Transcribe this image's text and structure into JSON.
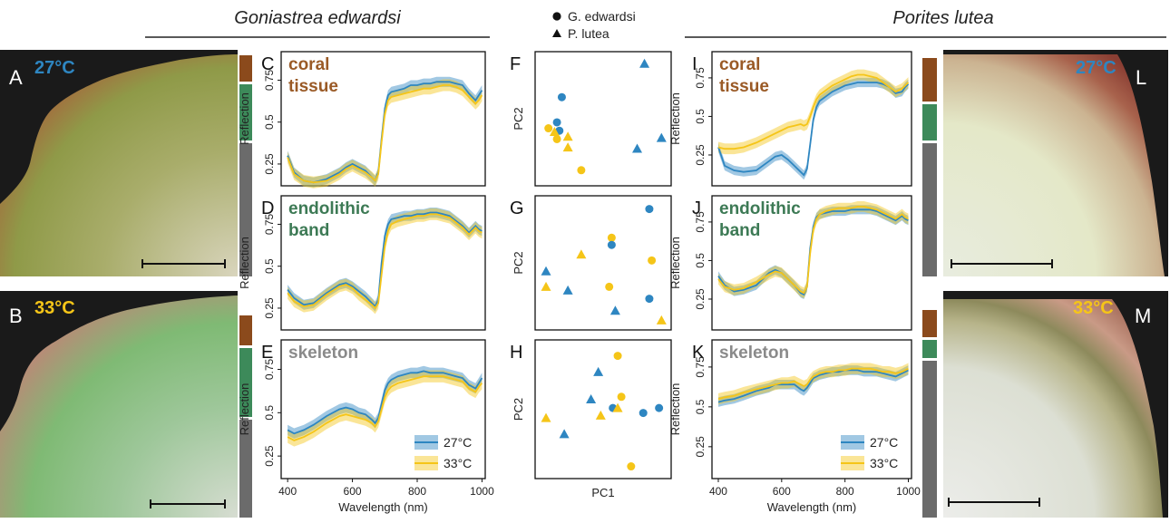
{
  "species": {
    "left": "Goniastrea edwardsi",
    "right": "Porites lutea"
  },
  "colors": {
    "c27": "#2e86c1",
    "c33": "#f5c518",
    "tissue": "#8b4a1c",
    "band": "#3d8a5a",
    "skeleton": "#6b6b6b",
    "lbl_tissue": "#9a5a26",
    "lbl_band": "#3d7a55",
    "lbl_skel": "#8a8a8a"
  },
  "photos": [
    {
      "letter": "A",
      "temp": "27°C",
      "temp_color": "#2e86c1"
    },
    {
      "letter": "B",
      "temp": "33°C",
      "temp_color": "#f5c518"
    },
    {
      "letter": "L",
      "temp": "27°C",
      "temp_color": "#2e86c1"
    },
    {
      "letter": "M",
      "temp": "33°C",
      "temp_color": "#f5c518"
    }
  ],
  "pca_legend": [
    {
      "label": "G. edwardsi",
      "shape": "circle"
    },
    {
      "label": "P. lutea",
      "shape": "triangle"
    }
  ],
  "spectra_legend": [
    {
      "label": "27°C",
      "color": "#2e86c1"
    },
    {
      "label": "33°C",
      "color": "#f5c518"
    }
  ],
  "chart_data": [
    {
      "type": "line",
      "panel": "C",
      "title": "coral\ntissue",
      "xlabel": "",
      "ylabel": "Reflection",
      "xlim": [
        380,
        1010
      ],
      "ylim": [
        0.12,
        0.92
      ],
      "x_ticks": [
        400,
        600,
        800,
        1000
      ],
      "y_ticks": [
        0.25,
        0.5,
        0.75
      ],
      "x": [
        400,
        420,
        450,
        480,
        520,
        560,
        580,
        600,
        620,
        640,
        660,
        670,
        680,
        690,
        700,
        710,
        720,
        740,
        760,
        780,
        800,
        820,
        840,
        860,
        880,
        900,
        920,
        940,
        960,
        980,
        990,
        1000
      ],
      "series": [
        {
          "name": "27°C",
          "values": [
            0.3,
            0.2,
            0.15,
            0.14,
            0.16,
            0.2,
            0.23,
            0.25,
            0.23,
            0.21,
            0.17,
            0.15,
            0.2,
            0.4,
            0.58,
            0.66,
            0.68,
            0.69,
            0.7,
            0.72,
            0.72,
            0.73,
            0.73,
            0.74,
            0.74,
            0.74,
            0.73,
            0.72,
            0.67,
            0.63,
            0.66,
            0.69
          ]
        },
        {
          "name": "33°C",
          "values": [
            0.29,
            0.19,
            0.15,
            0.14,
            0.15,
            0.19,
            0.22,
            0.24,
            0.22,
            0.2,
            0.17,
            0.15,
            0.19,
            0.38,
            0.55,
            0.63,
            0.65,
            0.66,
            0.67,
            0.68,
            0.69,
            0.7,
            0.7,
            0.71,
            0.72,
            0.72,
            0.71,
            0.69,
            0.65,
            0.61,
            0.63,
            0.66
          ]
        }
      ]
    },
    {
      "type": "line",
      "panel": "D",
      "title": "endolithic\nband",
      "xlabel": "",
      "ylabel": "Reflection",
      "xlim": [
        380,
        1010
      ],
      "ylim": [
        0.12,
        0.92
      ],
      "x_ticks": [
        400,
        600,
        800,
        1000
      ],
      "y_ticks": [
        0.25,
        0.5,
        0.75
      ],
      "x": [
        400,
        420,
        450,
        480,
        520,
        560,
        580,
        600,
        620,
        640,
        660,
        670,
        680,
        690,
        700,
        710,
        720,
        740,
        760,
        780,
        800,
        820,
        840,
        860,
        880,
        900,
        920,
        940,
        960,
        980,
        990,
        1000
      ],
      "series": [
        {
          "name": "27°C",
          "values": [
            0.36,
            0.31,
            0.27,
            0.28,
            0.34,
            0.39,
            0.4,
            0.38,
            0.35,
            0.32,
            0.28,
            0.26,
            0.3,
            0.52,
            0.68,
            0.75,
            0.78,
            0.79,
            0.8,
            0.8,
            0.81,
            0.81,
            0.82,
            0.82,
            0.81,
            0.8,
            0.77,
            0.74,
            0.7,
            0.74,
            0.72,
            0.71
          ]
        },
        {
          "name": "33°C",
          "values": [
            0.34,
            0.29,
            0.26,
            0.27,
            0.33,
            0.38,
            0.39,
            0.37,
            0.33,
            0.3,
            0.27,
            0.25,
            0.28,
            0.45,
            0.62,
            0.71,
            0.75,
            0.77,
            0.78,
            0.79,
            0.8,
            0.8,
            0.81,
            0.81,
            0.8,
            0.79,
            0.76,
            0.73,
            0.69,
            0.73,
            0.71,
            0.7
          ]
        }
      ]
    },
    {
      "type": "line",
      "panel": "E",
      "title": "skeleton",
      "xlabel": "Wavelength (nm)",
      "ylabel": "Reflection",
      "xlim": [
        380,
        1010
      ],
      "ylim": [
        0.12,
        0.92
      ],
      "x_ticks": [
        400,
        600,
        800,
        1000
      ],
      "y_ticks": [
        0.25,
        0.5,
        0.75
      ],
      "x": [
        400,
        420,
        450,
        480,
        520,
        560,
        580,
        600,
        620,
        640,
        660,
        670,
        680,
        690,
        700,
        710,
        720,
        740,
        760,
        780,
        800,
        820,
        840,
        860,
        880,
        900,
        920,
        940,
        960,
        980,
        990,
        1000
      ],
      "series": [
        {
          "name": "27°C",
          "values": [
            0.4,
            0.38,
            0.4,
            0.43,
            0.48,
            0.52,
            0.53,
            0.52,
            0.5,
            0.49,
            0.46,
            0.44,
            0.47,
            0.55,
            0.63,
            0.67,
            0.69,
            0.71,
            0.72,
            0.73,
            0.73,
            0.74,
            0.73,
            0.73,
            0.73,
            0.72,
            0.71,
            0.7,
            0.66,
            0.64,
            0.67,
            0.7
          ]
        },
        {
          "name": "33°C",
          "values": [
            0.36,
            0.34,
            0.36,
            0.39,
            0.44,
            0.48,
            0.49,
            0.48,
            0.47,
            0.46,
            0.44,
            0.42,
            0.45,
            0.52,
            0.59,
            0.63,
            0.65,
            0.67,
            0.68,
            0.69,
            0.7,
            0.71,
            0.71,
            0.71,
            0.71,
            0.7,
            0.69,
            0.68,
            0.64,
            0.62,
            0.65,
            0.67
          ]
        }
      ]
    },
    {
      "type": "scatter",
      "panel": "F",
      "title": "",
      "xlabel": "",
      "ylabel": "PC2",
      "xlim": [
        0,
        1
      ],
      "ylim": [
        0,
        1
      ],
      "points": [
        {
          "x": 0.84,
          "y": 0.96,
          "temp": "27°C",
          "species": "P. lutea"
        },
        {
          "x": 0.16,
          "y": 0.68,
          "temp": "27°C",
          "species": "G. edwardsi"
        },
        {
          "x": 0.12,
          "y": 0.47,
          "temp": "27°C",
          "species": "G. edwardsi"
        },
        {
          "x": 0.14,
          "y": 0.4,
          "temp": "27°C",
          "species": "G. edwardsi"
        },
        {
          "x": 0.05,
          "y": 0.42,
          "temp": "33°C",
          "species": "G. edwardsi"
        },
        {
          "x": 0.1,
          "y": 0.39,
          "temp": "33°C",
          "species": "P. lutea"
        },
        {
          "x": 0.12,
          "y": 0.33,
          "temp": "33°C",
          "species": "G. edwardsi"
        },
        {
          "x": 0.21,
          "y": 0.35,
          "temp": "33°C",
          "species": "P. lutea"
        },
        {
          "x": 0.21,
          "y": 0.26,
          "temp": "33°C",
          "species": "P. lutea"
        },
        {
          "x": 0.32,
          "y": 0.07,
          "temp": "33°C",
          "species": "G. edwardsi"
        },
        {
          "x": 0.78,
          "y": 0.25,
          "temp": "27°C",
          "species": "P. lutea"
        },
        {
          "x": 0.98,
          "y": 0.34,
          "temp": "27°C",
          "species": "P. lutea"
        }
      ]
    },
    {
      "type": "scatter",
      "panel": "G",
      "title": "",
      "xlabel": "",
      "ylabel": "PC2",
      "xlim": [
        0,
        1
      ],
      "ylim": [
        0,
        1
      ],
      "points": [
        {
          "x": 0.88,
          "y": 0.95,
          "temp": "27°C",
          "species": "G. edwardsi"
        },
        {
          "x": 0.57,
          "y": 0.71,
          "temp": "33°C",
          "species": "G. edwardsi"
        },
        {
          "x": 0.57,
          "y": 0.65,
          "temp": "27°C",
          "species": "G. edwardsi"
        },
        {
          "x": 0.32,
          "y": 0.57,
          "temp": "33°C",
          "species": "P. lutea"
        },
        {
          "x": 0.9,
          "y": 0.52,
          "temp": "33°C",
          "species": "G. edwardsi"
        },
        {
          "x": 0.03,
          "y": 0.43,
          "temp": "27°C",
          "species": "P. lutea"
        },
        {
          "x": 0.03,
          "y": 0.3,
          "temp": "33°C",
          "species": "P. lutea"
        },
        {
          "x": 0.21,
          "y": 0.27,
          "temp": "27°C",
          "species": "P. lutea"
        },
        {
          "x": 0.55,
          "y": 0.3,
          "temp": "33°C",
          "species": "G. edwardsi"
        },
        {
          "x": 0.88,
          "y": 0.2,
          "temp": "27°C",
          "species": "G. edwardsi"
        },
        {
          "x": 0.6,
          "y": 0.1,
          "temp": "27°C",
          "species": "P. lutea"
        },
        {
          "x": 0.98,
          "y": 0.02,
          "temp": "33°C",
          "species": "P. lutea"
        }
      ]
    },
    {
      "type": "scatter",
      "panel": "H",
      "title": "",
      "xlabel": "PC1",
      "ylabel": "PC2",
      "xlim": [
        0,
        1
      ],
      "ylim": [
        0,
        1
      ],
      "points": [
        {
          "x": 0.62,
          "y": 0.93,
          "temp": "33°C",
          "species": "G. edwardsi"
        },
        {
          "x": 0.46,
          "y": 0.8,
          "temp": "27°C",
          "species": "P. lutea"
        },
        {
          "x": 0.65,
          "y": 0.6,
          "temp": "33°C",
          "species": "G. edwardsi"
        },
        {
          "x": 0.4,
          "y": 0.58,
          "temp": "27°C",
          "species": "P. lutea"
        },
        {
          "x": 0.58,
          "y": 0.51,
          "temp": "27°C",
          "species": "G. edwardsi"
        },
        {
          "x": 0.62,
          "y": 0.51,
          "temp": "33°C",
          "species": "P. lutea"
        },
        {
          "x": 0.83,
          "y": 0.47,
          "temp": "27°C",
          "species": "G. edwardsi"
        },
        {
          "x": 0.96,
          "y": 0.51,
          "temp": "27°C",
          "species": "G. edwardsi"
        },
        {
          "x": 0.03,
          "y": 0.43,
          "temp": "33°C",
          "species": "P. lutea"
        },
        {
          "x": 0.48,
          "y": 0.45,
          "temp": "33°C",
          "species": "P. lutea"
        },
        {
          "x": 0.18,
          "y": 0.3,
          "temp": "27°C",
          "species": "P. lutea"
        },
        {
          "x": 0.73,
          "y": 0.04,
          "temp": "33°C",
          "species": "G. edwardsi"
        }
      ]
    },
    {
      "type": "line",
      "panel": "I",
      "title": "coral\ntissue",
      "xlabel": "",
      "ylabel": "Reflection",
      "xlim": [
        380,
        1010
      ],
      "ylim": [
        0.05,
        0.92
      ],
      "x_ticks": [
        400,
        600,
        800,
        1000
      ],
      "y_ticks": [
        0.25,
        0.5,
        0.75
      ],
      "x": [
        400,
        420,
        450,
        480,
        520,
        560,
        580,
        600,
        620,
        640,
        660,
        670,
        680,
        690,
        700,
        710,
        720,
        740,
        760,
        780,
        800,
        820,
        840,
        860,
        880,
        900,
        920,
        940,
        960,
        980,
        990,
        1000
      ],
      "series": [
        {
          "name": "27°C",
          "values": [
            0.3,
            0.18,
            0.15,
            0.14,
            0.15,
            0.21,
            0.24,
            0.25,
            0.22,
            0.18,
            0.14,
            0.12,
            0.16,
            0.32,
            0.48,
            0.56,
            0.6,
            0.63,
            0.66,
            0.68,
            0.7,
            0.71,
            0.72,
            0.72,
            0.72,
            0.72,
            0.71,
            0.69,
            0.65,
            0.66,
            0.69,
            0.71
          ]
        },
        {
          "name": "33°C",
          "values": [
            0.3,
            0.29,
            0.29,
            0.3,
            0.33,
            0.37,
            0.39,
            0.41,
            0.43,
            0.44,
            0.45,
            0.44,
            0.45,
            0.5,
            0.56,
            0.61,
            0.64,
            0.67,
            0.7,
            0.72,
            0.74,
            0.76,
            0.77,
            0.77,
            0.76,
            0.75,
            0.72,
            0.69,
            0.66,
            0.68,
            0.7,
            0.72
          ]
        }
      ]
    },
    {
      "type": "line",
      "panel": "J",
      "title": "endolithic\nband",
      "xlabel": "",
      "ylabel": "Reflection",
      "xlim": [
        380,
        1010
      ],
      "ylim": [
        0.05,
        0.92
      ],
      "x_ticks": [
        400,
        600,
        800,
        1000
      ],
      "y_ticks": [
        0.25,
        0.5,
        0.75
      ],
      "x": [
        400,
        420,
        450,
        480,
        520,
        560,
        580,
        600,
        620,
        640,
        660,
        670,
        680,
        690,
        700,
        710,
        720,
        740,
        760,
        780,
        800,
        820,
        840,
        860,
        880,
        900,
        920,
        940,
        960,
        980,
        990,
        1000
      ],
      "series": [
        {
          "name": "27°C",
          "values": [
            0.4,
            0.34,
            0.3,
            0.31,
            0.34,
            0.42,
            0.44,
            0.42,
            0.38,
            0.34,
            0.29,
            0.28,
            0.33,
            0.58,
            0.72,
            0.78,
            0.8,
            0.81,
            0.82,
            0.82,
            0.82,
            0.83,
            0.83,
            0.83,
            0.83,
            0.82,
            0.8,
            0.78,
            0.76,
            0.79,
            0.77,
            0.76
          ]
        },
        {
          "name": "33°C",
          "values": [
            0.38,
            0.33,
            0.31,
            0.32,
            0.36,
            0.41,
            0.43,
            0.42,
            0.38,
            0.34,
            0.3,
            0.29,
            0.33,
            0.55,
            0.7,
            0.77,
            0.8,
            0.82,
            0.83,
            0.84,
            0.84,
            0.84,
            0.85,
            0.85,
            0.84,
            0.83,
            0.81,
            0.79,
            0.77,
            0.8,
            0.78,
            0.77
          ]
        }
      ]
    },
    {
      "type": "line",
      "panel": "K",
      "title": "skeleton",
      "xlabel": "Wavelength (nm)",
      "ylabel": "Reflection",
      "xlim": [
        380,
        1010
      ],
      "ylim": [
        0.05,
        0.92
      ],
      "x_ticks": [
        400,
        600,
        800,
        1000
      ],
      "y_ticks": [
        0.25,
        0.5,
        0.75
      ],
      "x": [
        400,
        420,
        450,
        480,
        520,
        560,
        580,
        600,
        620,
        640,
        660,
        670,
        680,
        690,
        700,
        710,
        720,
        740,
        760,
        780,
        800,
        820,
        840,
        860,
        880,
        900,
        920,
        940,
        960,
        980,
        990,
        1000
      ],
      "series": [
        {
          "name": "27°C",
          "values": [
            0.53,
            0.54,
            0.55,
            0.57,
            0.6,
            0.62,
            0.64,
            0.64,
            0.64,
            0.64,
            0.61,
            0.6,
            0.62,
            0.65,
            0.68,
            0.69,
            0.7,
            0.71,
            0.72,
            0.72,
            0.73,
            0.73,
            0.73,
            0.72,
            0.72,
            0.72,
            0.71,
            0.7,
            0.69,
            0.71,
            0.72,
            0.73
          ]
        },
        {
          "name": "33°C",
          "values": [
            0.55,
            0.56,
            0.57,
            0.59,
            0.61,
            0.63,
            0.64,
            0.65,
            0.65,
            0.66,
            0.64,
            0.63,
            0.64,
            0.67,
            0.69,
            0.7,
            0.71,
            0.72,
            0.72,
            0.73,
            0.73,
            0.74,
            0.74,
            0.74,
            0.74,
            0.73,
            0.72,
            0.72,
            0.71,
            0.72,
            0.73,
            0.74
          ]
        }
      ]
    }
  ]
}
